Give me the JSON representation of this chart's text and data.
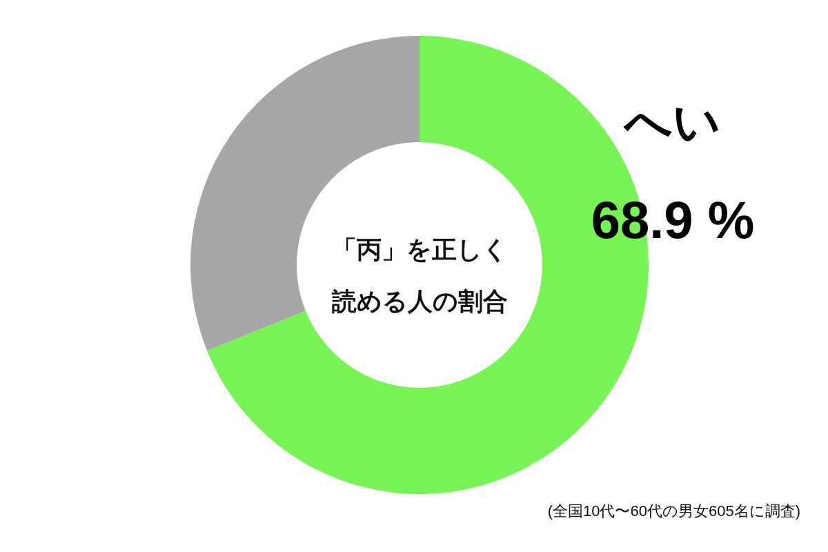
{
  "chart_data": {
    "type": "donut",
    "title": "「丙」を正しく読める人の割合",
    "categories": [
      "へい",
      null
    ],
    "values": [
      68.9,
      31.1
    ],
    "colors": [
      "#76f453",
      "#a6a6a6"
    ],
    "value_labels": [
      "68.9 %",
      null
    ],
    "annotations": [
      "(全国10代〜60代の男女605名に調査)"
    ]
  }
}
